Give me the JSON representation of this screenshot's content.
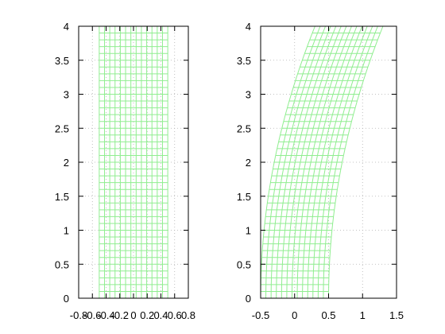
{
  "chart_data": [
    {
      "type": "line",
      "subtype": "mesh-grid",
      "title": "",
      "xlabel": "",
      "ylabel": "",
      "xlim": [
        -0.8,
        0.8
      ],
      "ylim": [
        0,
        4
      ],
      "x_ticks": [
        "-0.8",
        "-0.6",
        "-0.4",
        "-0.2",
        "0",
        "0.2",
        "0.4",
        "0.6",
        "0.8"
      ],
      "y_ticks": [
        "0",
        "0.5",
        "1",
        "1.5",
        "2",
        "2.5",
        "3",
        "3.5",
        "4"
      ],
      "grid": true,
      "mesh": {
        "color": "#90ee90",
        "u_range": [
          -0.5,
          0.5
        ],
        "u_lines": 14,
        "v_range": [
          0,
          4
        ],
        "v_lines": 41,
        "shear": 0
      }
    },
    {
      "type": "line",
      "subtype": "mesh-grid",
      "title": "",
      "xlabel": "",
      "ylabel": "",
      "xlim": [
        -0.5,
        1.5
      ],
      "ylim": [
        0,
        4
      ],
      "x_ticks": [
        "-0.5",
        "0",
        "0.5",
        "1",
        "1.5"
      ],
      "y_ticks": [
        "0",
        "0.5",
        "1",
        "1.5",
        "2",
        "2.5",
        "3",
        "3.5",
        "4"
      ],
      "grid": true,
      "mesh": {
        "color": "#90ee90",
        "u_range": [
          -0.5,
          0.5
        ],
        "u_lines": 14,
        "v_range": [
          0,
          4
        ],
        "v_lines": 41,
        "shear": 0.05
      }
    }
  ]
}
